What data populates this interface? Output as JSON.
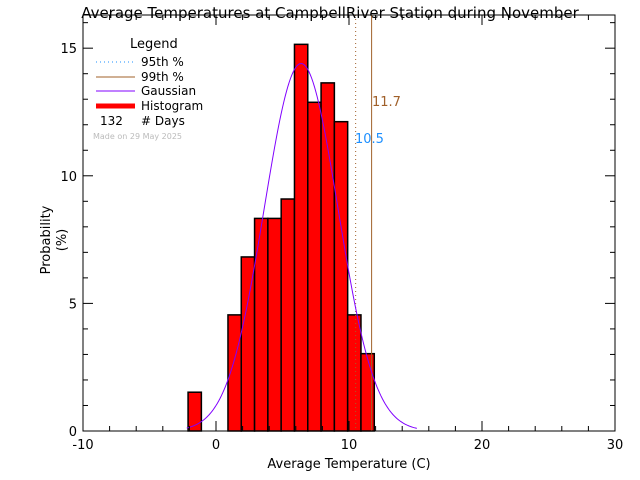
{
  "chart_data": {
    "type": "bar",
    "title": "Average Temperatures at CampbellRiver Station during November",
    "xlabel": "Average Temperature (C)",
    "ylabel": "Probability\n(%)",
    "xlim": [
      -10,
      30
    ],
    "ylim": [
      0,
      16.3
    ],
    "xticks": [
      -10,
      0,
      10,
      20,
      30
    ],
    "yticks": [
      0,
      5,
      10,
      15
    ],
    "bin_edges_start": [
      -2.1,
      0.9,
      1.9,
      2.9,
      3.9,
      4.9,
      5.9,
      6.9,
      7.9,
      8.9,
      9.9,
      10.9
    ],
    "bin_width": 1.0,
    "values": [
      1.52,
      4.55,
      6.82,
      8.33,
      8.33,
      9.09,
      15.15,
      12.88,
      13.64,
      12.12,
      4.55,
      3.03
    ],
    "gaussian": {
      "mean": 6.4,
      "sigma": 2.77,
      "peak": 14.4
    },
    "percentile_95": 10.5,
    "percentile_99": 11.7,
    "percentile_95_label": "10.5",
    "percentile_99_label": "11.7",
    "colors": {
      "histogram": "#ff0000",
      "gaussian": "#8000ff",
      "p95": "#1e90ff",
      "p99": "#a0602a"
    },
    "legend": {
      "title": "Legend",
      "placement": "top-left",
      "items": [
        "95th %",
        "99th %",
        "Gaussian",
        "Histogram"
      ],
      "days_count": "132",
      "days_label": "# Days",
      "made_on": "Made on 29 May 2025"
    }
  }
}
